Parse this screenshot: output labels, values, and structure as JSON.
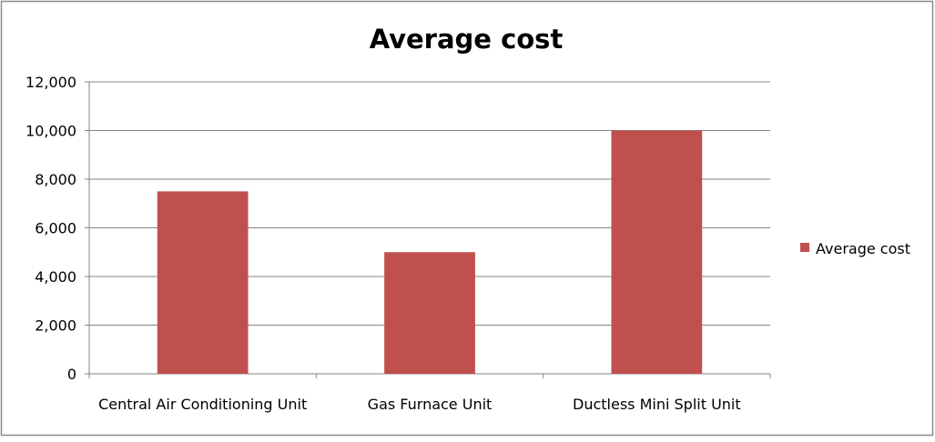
{
  "chart_data": {
    "type": "bar",
    "title": "Average cost",
    "xlabel": "",
    "ylabel": "",
    "categories": [
      "Central Air Conditioning Unit",
      "Gas Furnace Unit",
      "Ductless Mini Split Unit"
    ],
    "series": [
      {
        "name": "Average cost",
        "values": [
          7500,
          5000,
          10000
        ],
        "color": "#C0504D"
      }
    ],
    "ylim": [
      0,
      12000
    ],
    "yticks": [
      0,
      2000,
      4000,
      6000,
      8000,
      10000,
      12000
    ],
    "ytick_labels": [
      "0",
      "2,000",
      "4,000",
      "6,000",
      "8,000",
      "10,000",
      "12,000"
    ],
    "grid": true,
    "legend": {
      "position": "right",
      "entries": [
        "Average cost"
      ]
    }
  }
}
